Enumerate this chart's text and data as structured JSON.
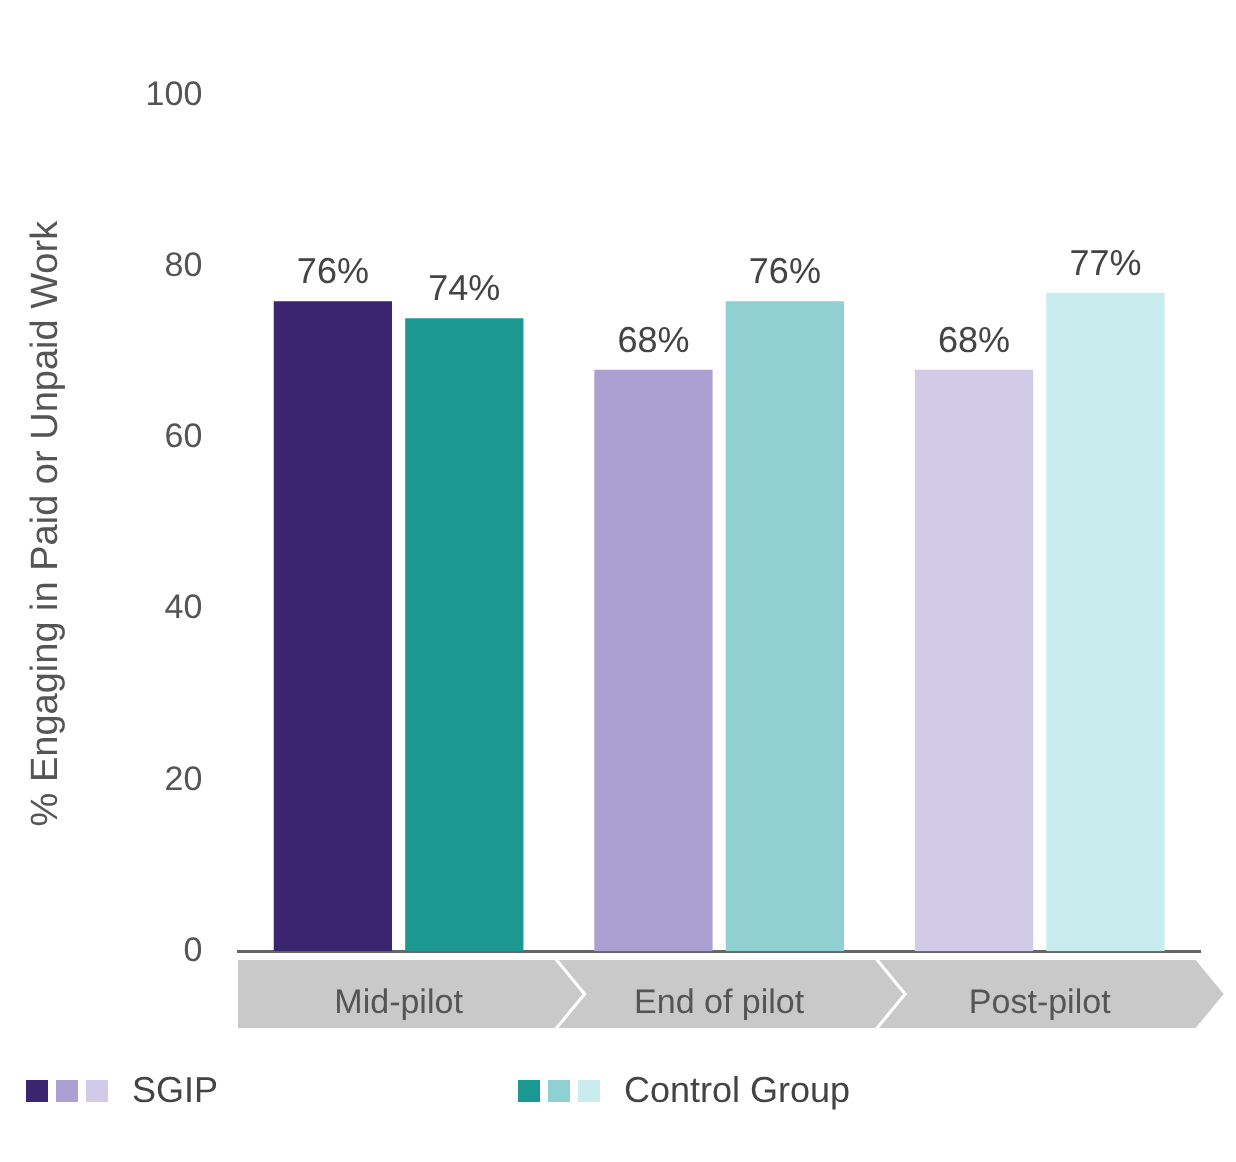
{
  "chart_data": {
    "type": "bar",
    "ylabel": "% Engaging in Paid or Unpaid Work",
    "categories": [
      "Mid-pilot",
      "End of pilot",
      "Post-pilot"
    ],
    "series": [
      {
        "name": "SGIP",
        "colors": [
          "#3b2470",
          "#aaa1d2",
          "#d2cbe8"
        ],
        "values": [
          76,
          68,
          68
        ],
        "value_labels": [
          "76%",
          "68%",
          "68%"
        ]
      },
      {
        "name": "Control Group",
        "colors": [
          "#1c9892",
          "#8fd1d2",
          "#c9ecee"
        ],
        "values": [
          74,
          76,
          77
        ],
        "value_labels": [
          "74%",
          "76%",
          "77%"
        ]
      }
    ],
    "ylim": [
      0,
      100
    ],
    "yticks": [
      0,
      20,
      40,
      60,
      80,
      100
    ],
    "grid": false,
    "legend": "bottom"
  }
}
